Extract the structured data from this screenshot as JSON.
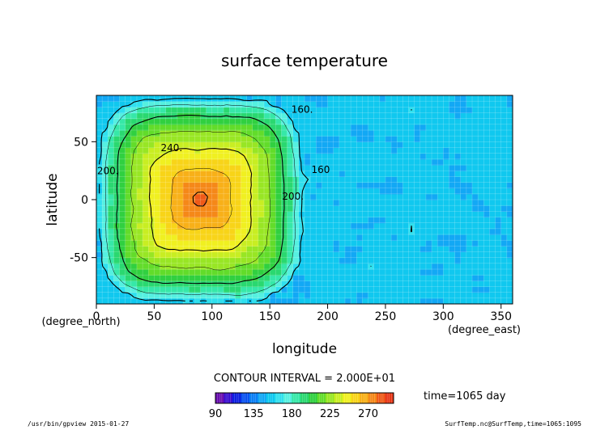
{
  "chart_data": {
    "type": "heatmap",
    "title": "surface temperature",
    "xlabel": "longitude",
    "ylabel": "latitude",
    "x_unit": "(degree_east)",
    "y_unit": "(degree_north)",
    "xlim": [
      0,
      360
    ],
    "ylim": [
      -90,
      90
    ],
    "x_ticks": [
      0,
      50,
      100,
      150,
      200,
      250,
      300,
      350
    ],
    "y_ticks": [
      -50,
      0,
      50
    ],
    "contour_interval_text": "CONTOUR INTERVAL = 2.000E+01",
    "time_text": "time=1065 day",
    "colorbar": {
      "min": 90,
      "max": 290,
      "step": 10,
      "tick_values": [
        90,
        135,
        180,
        225,
        270
      ],
      "colors": [
        "#6a0fb0",
        "#3a0fd0",
        "#0d1fe0",
        "#0a52f0",
        "#0a7ff5",
        "#12a8f5",
        "#10c8ef",
        "#30e0ee",
        "#55f0e0",
        "#36e8a8",
        "#2ad870",
        "#30d040",
        "#62dc2a",
        "#98e624",
        "#c8ee22",
        "#f0f020",
        "#f8d418",
        "#f8b018",
        "#f58818",
        "#ef5a18",
        "#e83818"
      ]
    },
    "hot_spot": {
      "center_lon": 90,
      "center_lat": 0,
      "max_value": 285
    },
    "cold_side_value": 155,
    "contour_labels": [
      {
        "text": "160.",
        "lon": 178,
        "lat": 75
      },
      {
        "text": "240.",
        "lon": 65,
        "lat": 42
      },
      {
        "text": "200.",
        "lon": 10,
        "lat": 22
      },
      {
        "text": "200.",
        "lon": 170,
        "lat": 0
      },
      {
        "text": "160",
        "lon": 194,
        "lat": 23
      }
    ],
    "grid": true,
    "legend": "bottom"
  },
  "footer": {
    "left": "/usr/bin/gpview  2015-01-27",
    "right": "SurfTemp.nc@SurfTemp,time=1065:1095"
  }
}
